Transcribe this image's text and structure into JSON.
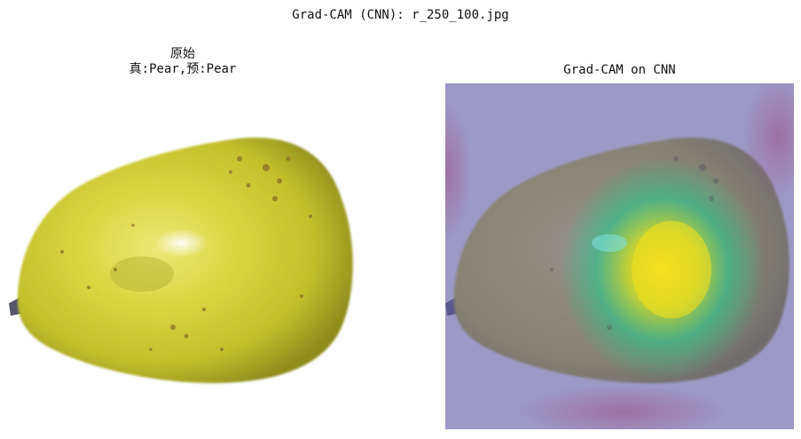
{
  "figure": {
    "title": "Grad-CAM (CNN): r_250_100.jpg"
  },
  "panels": [
    {
      "title_line1": "原始",
      "title_line2": "真:Pear,预:Pear",
      "image": "pear-photo"
    },
    {
      "title": "Grad-CAM on CNN",
      "image": "pear-photo-with-heatmap-overlay"
    }
  ],
  "colors": {
    "pear_light": "#e3de4c",
    "pear_mid": "#bfbd2f",
    "pear_dark": "#8e8a20",
    "heat_low": "#6e6aa3",
    "heat_mid": "#34c08a",
    "heat_high": "#f7e11c"
  }
}
